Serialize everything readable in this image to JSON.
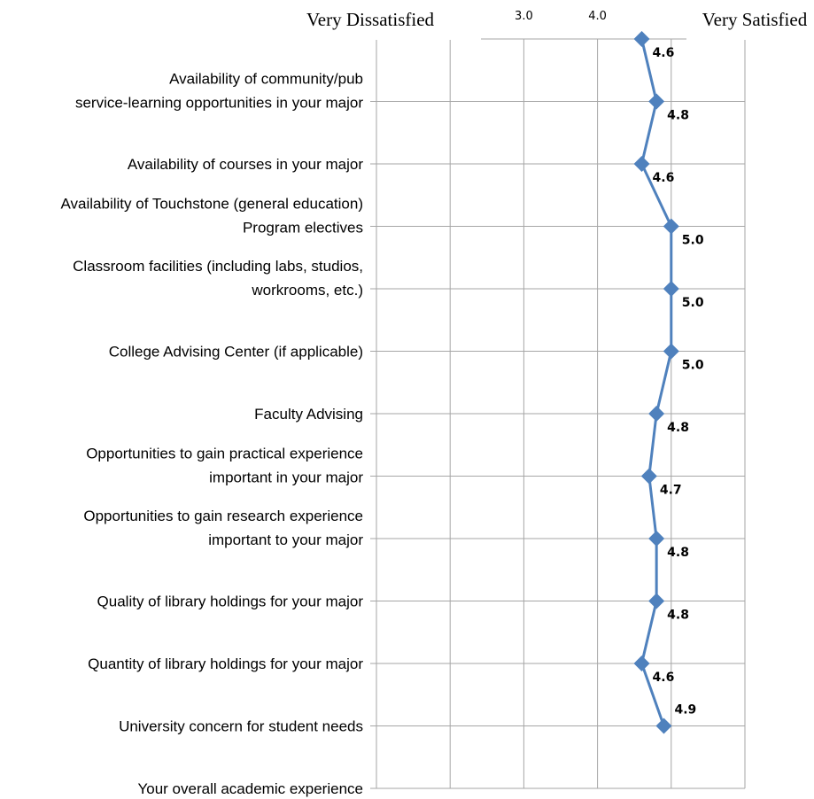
{
  "header": {
    "left_label": "Very Dissatisfied",
    "right_label": "Very Satisfied"
  },
  "chart_data": {
    "type": "line",
    "orientation": "horizontal-values",
    "categories": [
      [
        "Availability of community/pub",
        "service-learning opportunities in your major"
      ],
      [
        "Availability of courses in your major"
      ],
      [
        "Availability of Touchstone (general education)",
        "Program electives"
      ],
      [
        "Classroom facilities (including labs, studios,",
        "workrooms, etc.)"
      ],
      [
        "College Advising Center (if applicable)"
      ],
      [
        "Faculty Advising"
      ],
      [
        "Opportunities to gain practical experience",
        "important in your major"
      ],
      [
        "Opportunities to gain research experience",
        "important to your major"
      ],
      [
        "Quality of library holdings for your major"
      ],
      [
        "Quantity of library holdings for your major"
      ],
      [
        "University concern for student needs"
      ],
      [
        "Your overall academic experience"
      ]
    ],
    "values": [
      4.6,
      4.8,
      4.6,
      5.0,
      5.0,
      5.0,
      4.8,
      4.7,
      4.8,
      4.8,
      4.6,
      4.9
    ],
    "value_labels": [
      "4.6",
      "4.8",
      "4.6",
      "5.0",
      "5.0",
      "5.0",
      "4.8",
      "4.7",
      "4.8",
      "4.8",
      "4.6",
      "4.9"
    ],
    "tick_labels": [
      "3.0",
      "4.0"
    ],
    "tick_values": [
      3,
      4
    ],
    "xlim": [
      1,
      6
    ],
    "grid": true,
    "series_color": "#4f81bd",
    "grid_color": "#a6a6a6"
  }
}
